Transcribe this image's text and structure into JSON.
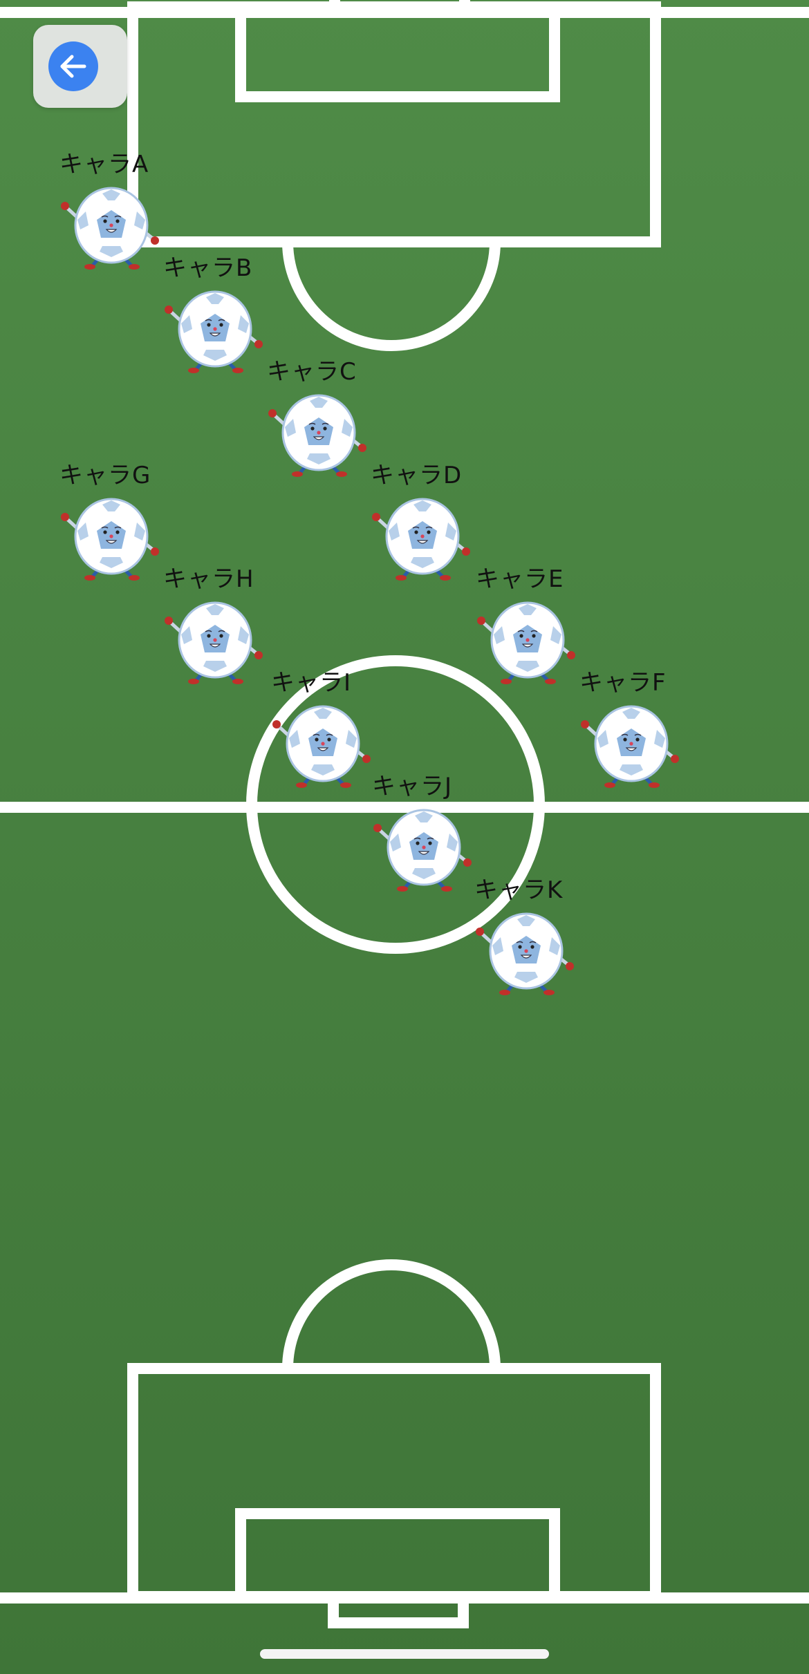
{
  "screen": {
    "name": "formation-view",
    "back_icon": "arrow-left-icon",
    "accent_color": "#3b82f0",
    "field_color": "#4a8442"
  },
  "players": [
    {
      "id": "a",
      "label": "キャラA"
    },
    {
      "id": "b",
      "label": "キャラB"
    },
    {
      "id": "c",
      "label": "キャラC"
    },
    {
      "id": "d",
      "label": "キャラD"
    },
    {
      "id": "e",
      "label": "キャラE"
    },
    {
      "id": "f",
      "label": "キャラF"
    },
    {
      "id": "g",
      "label": "キャラG"
    },
    {
      "id": "h",
      "label": "キャラH"
    },
    {
      "id": "i",
      "label": "キャラI"
    },
    {
      "id": "j",
      "label": "キャラJ"
    },
    {
      "id": "k",
      "label": "キャラK"
    }
  ]
}
